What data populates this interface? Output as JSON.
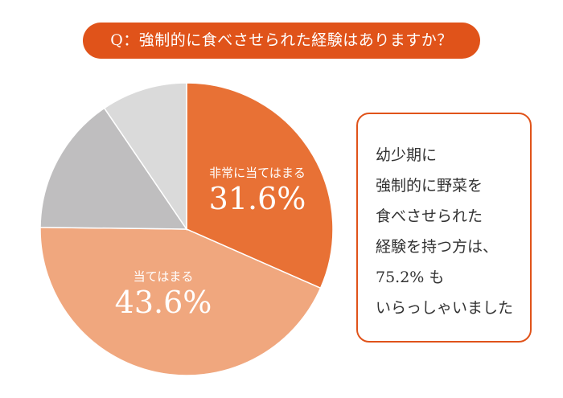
{
  "title": "Q：強制的に食べさせられた経験はありますか？",
  "chart_data": {
    "type": "pie",
    "start": "top",
    "direction": "clockwise",
    "slices": [
      {
        "name": "非常に当てはまる",
        "value": 31.6,
        "label": "31.6%",
        "color": "#e87135"
      },
      {
        "name": "当てはまる",
        "value": 43.6,
        "label": "43.6%",
        "color": "#f0a77e"
      },
      {
        "name": "",
        "value": 15.3,
        "color": "#bfbebf"
      },
      {
        "name": "",
        "value": 9.5,
        "color": "#dadada"
      }
    ]
  },
  "callout": {
    "lines": [
      "幼少期に",
      "強制的に野菜を",
      "食べさせられた",
      "経験を持つ方は、",
      "75.2% も",
      "いらっしゃいました"
    ]
  },
  "colors": {
    "accent": "#e0531a"
  }
}
